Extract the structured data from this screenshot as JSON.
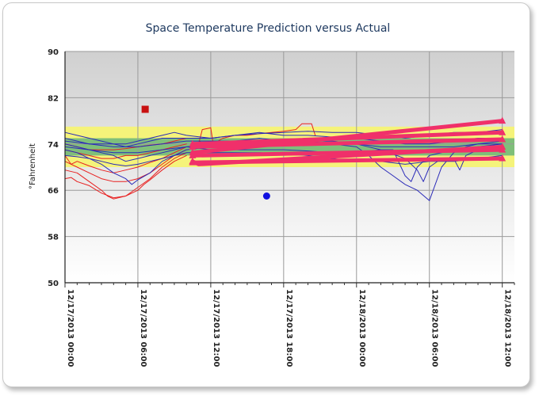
{
  "chart_data": {
    "type": "line",
    "title": "Space Temperature Prediction versus Actual",
    "ylabel": "°Fahrenheit",
    "xlabel": "",
    "ylim": [
      50,
      90
    ],
    "yticks": [
      50,
      58,
      66,
      74,
      82,
      90
    ],
    "xticks": [
      "12/17/2013 00:00",
      "12/17/2013 06:00",
      "12/17/2013 12:00",
      "12/17/2013 18:00",
      "12/18/2013 00:00",
      "12/18/2013 06:00",
      "12/18/2013 12:00"
    ],
    "xlim_hours": [
      0,
      37
    ],
    "grid": true,
    "bands": [
      {
        "range": [
          70,
          77
        ],
        "color": "#f5f37a"
      },
      {
        "range": [
          72,
          75
        ],
        "color": "#7fbf7a"
      }
    ],
    "colors": {
      "actual_red": "#e82020",
      "actual_blue": "#2a2ab8",
      "prediction": "#f0306a",
      "square": "#c81010",
      "dot": "#1010e0"
    },
    "markers": [
      {
        "shape": "square",
        "hour": 6.6,
        "value": 80
      },
      {
        "shape": "circle",
        "hour": 16.6,
        "value": 65
      }
    ],
    "series": [
      {
        "group": "actual_red",
        "points": [
          [
            0,
            68
          ],
          [
            0.5,
            68.2
          ],
          [
            1,
            67.5
          ],
          [
            2,
            66.8
          ],
          [
            3,
            65.5
          ],
          [
            4,
            64.7
          ],
          [
            5,
            65
          ],
          [
            6,
            66
          ],
          [
            6.5,
            67
          ],
          [
            7,
            67.8
          ],
          [
            8,
            69.5
          ],
          [
            9,
            71
          ],
          [
            10,
            72
          ]
        ]
      },
      {
        "group": "actual_red",
        "points": [
          [
            0,
            69.5
          ],
          [
            1,
            69
          ],
          [
            2,
            67.5
          ],
          [
            3,
            66
          ],
          [
            3.5,
            65
          ],
          [
            4,
            64.5
          ],
          [
            5,
            65
          ],
          [
            6,
            66.5
          ],
          [
            7,
            68
          ],
          [
            8,
            70
          ],
          [
            9,
            71.5
          ],
          [
            10,
            72.5
          ]
        ]
      },
      {
        "group": "actual_red",
        "points": [
          [
            0,
            71
          ],
          [
            1,
            70
          ],
          [
            2,
            69
          ],
          [
            3,
            68
          ],
          [
            4,
            67.5
          ],
          [
            5,
            67.5
          ],
          [
            6,
            68
          ],
          [
            7,
            69
          ],
          [
            8,
            70.5
          ],
          [
            9,
            72
          ],
          [
            10,
            73
          ]
        ]
      },
      {
        "group": "actual_red",
        "points": [
          [
            0,
            72
          ],
          [
            0.5,
            70.5
          ],
          [
            1,
            71
          ],
          [
            2,
            70.2
          ],
          [
            3,
            69.5
          ],
          [
            4,
            69
          ],
          [
            5,
            69.5
          ],
          [
            6,
            70
          ],
          [
            7,
            70.8
          ],
          [
            8,
            71.5
          ],
          [
            9,
            72.5
          ],
          [
            10,
            73.5
          ]
        ]
      },
      {
        "group": "actual_red",
        "points": [
          [
            0,
            73
          ],
          [
            1,
            72.5
          ],
          [
            2,
            72
          ],
          [
            3,
            71.5
          ],
          [
            4,
            71.5
          ],
          [
            5,
            72
          ],
          [
            6,
            72
          ],
          [
            7,
            72.5
          ],
          [
            8,
            73
          ],
          [
            9,
            73.5
          ],
          [
            10,
            74
          ]
        ]
      },
      {
        "group": "actual_red",
        "points": [
          [
            0,
            74
          ],
          [
            1,
            73.5
          ],
          [
            2,
            73
          ],
          [
            3,
            73
          ],
          [
            4,
            73
          ],
          [
            5,
            73.2
          ],
          [
            6,
            73.5
          ],
          [
            7,
            73.8
          ],
          [
            8,
            74
          ],
          [
            9,
            74.5
          ],
          [
            10,
            75
          ]
        ]
      },
      {
        "group": "actual_red",
        "points": [
          [
            11,
            74
          ],
          [
            11.3,
            76.5
          ],
          [
            12,
            76.8
          ],
          [
            12.2,
            74
          ],
          [
            13,
            75
          ],
          [
            14,
            75.5
          ],
          [
            15,
            75.5
          ],
          [
            16,
            75.8
          ],
          [
            17,
            76
          ],
          [
            18,
            76.2
          ],
          [
            19,
            76.5
          ],
          [
            19.5,
            77.5
          ],
          [
            20.3,
            77.5
          ],
          [
            20.6,
            75.5
          ]
        ]
      },
      {
        "group": "actual_red",
        "points": [
          [
            11,
            74.5
          ],
          [
            12,
            73.5
          ],
          [
            13,
            74
          ],
          [
            14,
            74.2
          ],
          [
            15,
            74.5
          ],
          [
            16,
            74.5
          ],
          [
            17,
            74.5
          ],
          [
            18,
            74.8
          ]
        ]
      },
      {
        "group": "actual_blue",
        "points": [
          [
            0,
            73
          ],
          [
            1,
            72.5
          ],
          [
            2,
            71.5
          ],
          [
            3,
            70.5
          ],
          [
            4,
            69
          ],
          [
            5,
            68
          ],
          [
            5.5,
            67
          ],
          [
            6,
            67.8
          ],
          [
            7,
            69
          ],
          [
            8,
            71
          ],
          [
            9,
            72
          ],
          [
            10,
            73
          ],
          [
            12,
            73.5
          ],
          [
            14,
            74
          ],
          [
            16,
            74
          ],
          [
            18,
            74.5
          ],
          [
            20,
            74.5
          ],
          [
            22,
            74
          ],
          [
            24,
            73.5
          ],
          [
            25,
            72
          ],
          [
            26,
            70
          ],
          [
            27,
            68.5
          ],
          [
            28,
            67
          ],
          [
            29,
            66
          ],
          [
            30,
            64.2
          ],
          [
            31,
            70
          ],
          [
            32,
            72.5
          ],
          [
            33,
            73.5
          ],
          [
            34,
            74
          ],
          [
            36,
            74.5
          ]
        ]
      },
      {
        "group": "actual_blue",
        "points": [
          [
            0,
            74
          ],
          [
            1,
            73.5
          ],
          [
            2,
            73
          ],
          [
            3,
            72.5
          ],
          [
            4,
            72
          ],
          [
            5,
            71
          ],
          [
            6,
            71.5
          ],
          [
            7,
            72
          ],
          [
            8,
            72.5
          ],
          [
            9,
            73
          ],
          [
            10,
            73.5
          ],
          [
            12,
            74
          ],
          [
            14,
            74.5
          ],
          [
            16,
            75
          ],
          [
            18,
            74.5
          ],
          [
            20,
            74.5
          ],
          [
            22,
            74.5
          ],
          [
            24,
            74
          ],
          [
            26,
            73
          ],
          [
            28,
            71.5
          ],
          [
            29,
            69.5
          ],
          [
            29.5,
            67.5
          ],
          [
            30,
            70
          ],
          [
            31,
            71.5
          ],
          [
            32,
            71.5
          ],
          [
            32.5,
            69.5
          ],
          [
            33,
            72
          ],
          [
            34,
            73
          ],
          [
            36,
            73.5
          ]
        ]
      },
      {
        "group": "actual_blue",
        "points": [
          [
            0,
            75
          ],
          [
            1,
            74.5
          ],
          [
            2,
            74
          ],
          [
            3,
            74
          ],
          [
            4,
            74
          ],
          [
            5,
            73.5
          ],
          [
            6,
            74
          ],
          [
            7,
            74.5
          ],
          [
            8,
            75
          ],
          [
            9,
            75
          ],
          [
            10,
            75
          ],
          [
            12,
            75
          ],
          [
            14,
            75.5
          ],
          [
            16,
            76
          ],
          [
            18,
            75.5
          ],
          [
            20,
            75.5
          ],
          [
            22,
            75.2
          ],
          [
            24,
            75
          ],
          [
            26,
            74.5
          ],
          [
            28,
            74
          ],
          [
            30,
            74
          ],
          [
            32,
            74.5
          ],
          [
            34,
            75
          ],
          [
            36,
            75
          ]
        ]
      },
      {
        "group": "actual_blue",
        "points": [
          [
            0,
            76
          ],
          [
            1,
            75.5
          ],
          [
            2,
            75
          ],
          [
            3,
            74.5
          ],
          [
            4,
            74
          ],
          [
            5,
            74
          ],
          [
            6,
            74.5
          ],
          [
            7,
            75
          ],
          [
            8,
            75.5
          ],
          [
            9,
            76
          ],
          [
            10,
            75.5
          ],
          [
            12,
            75
          ],
          [
            14,
            75.5
          ],
          [
            16,
            75.8
          ],
          [
            18,
            76
          ],
          [
            20,
            76.2
          ],
          [
            22,
            76
          ],
          [
            24,
            76
          ],
          [
            26,
            75.5
          ],
          [
            28,
            75
          ],
          [
            30,
            75.5
          ],
          [
            32,
            76
          ],
          [
            34,
            76
          ],
          [
            36,
            76.5
          ]
        ]
      },
      {
        "group": "actual_blue",
        "points": [
          [
            0,
            72
          ],
          [
            1,
            71.8
          ],
          [
            2,
            71.5
          ],
          [
            3,
            71
          ],
          [
            4,
            70.5
          ],
          [
            5,
            70.2
          ],
          [
            6,
            70.5
          ],
          [
            7,
            71
          ],
          [
            8,
            71.5
          ],
          [
            9,
            72
          ],
          [
            10,
            72.5
          ],
          [
            12,
            72.5
          ],
          [
            14,
            72.5
          ],
          [
            16,
            72.5
          ],
          [
            18,
            72.3
          ],
          [
            20,
            72
          ],
          [
            22,
            71.5
          ],
          [
            24,
            71
          ],
          [
            26,
            71
          ],
          [
            28,
            70.5
          ],
          [
            30,
            71
          ],
          [
            32,
            71
          ],
          [
            34,
            71.5
          ],
          [
            36,
            72
          ]
        ]
      },
      {
        "group": "actual_blue",
        "points": [
          [
            0,
            73.5
          ],
          [
            2,
            73
          ],
          [
            4,
            72.5
          ],
          [
            6,
            72.5
          ],
          [
            8,
            73
          ],
          [
            10,
            73.5
          ],
          [
            12,
            73
          ],
          [
            14,
            73
          ],
          [
            16,
            73
          ],
          [
            18,
            73
          ],
          [
            20,
            72.8
          ],
          [
            22,
            72.5
          ],
          [
            24,
            72.5
          ],
          [
            26,
            73
          ],
          [
            27,
            73
          ],
          [
            28,
            68.5
          ],
          [
            28.5,
            67.5
          ],
          [
            29,
            70
          ],
          [
            30,
            72
          ],
          [
            32,
            73
          ],
          [
            34,
            73.5
          ],
          [
            36,
            74
          ]
        ]
      },
      {
        "group": "actual_blue",
        "points": [
          [
            0,
            74.5
          ],
          [
            2,
            74
          ],
          [
            4,
            73.5
          ],
          [
            6,
            73.5
          ],
          [
            8,
            74
          ],
          [
            10,
            74.5
          ],
          [
            12,
            74.5
          ],
          [
            14,
            74.5
          ],
          [
            16,
            74.5
          ],
          [
            18,
            74
          ],
          [
            20,
            74
          ],
          [
            22,
            74
          ],
          [
            24,
            74
          ],
          [
            26,
            73.5
          ],
          [
            28,
            73.5
          ],
          [
            30,
            73.5
          ],
          [
            32,
            73.5
          ],
          [
            34,
            74
          ],
          [
            36,
            74
          ]
        ]
      },
      {
        "group": "prediction",
        "points": [
          [
            10.5,
            72.5
          ],
          [
            36,
            78
          ]
        ]
      },
      {
        "group": "prediction",
        "points": [
          [
            10.5,
            74
          ],
          [
            36,
            76
          ]
        ]
      },
      {
        "group": "prediction",
        "points": [
          [
            10.5,
            73.5
          ],
          [
            36,
            74.8
          ]
        ]
      },
      {
        "group": "prediction",
        "points": [
          [
            10.5,
            71
          ],
          [
            11,
            70.5
          ],
          [
            36,
            73.5
          ]
        ]
      },
      {
        "group": "prediction",
        "points": [
          [
            10.5,
            72
          ],
          [
            36,
            73
          ]
        ]
      },
      {
        "group": "prediction",
        "points": [
          [
            10.5,
            70.8
          ],
          [
            36,
            71.5
          ]
        ]
      }
    ]
  }
}
